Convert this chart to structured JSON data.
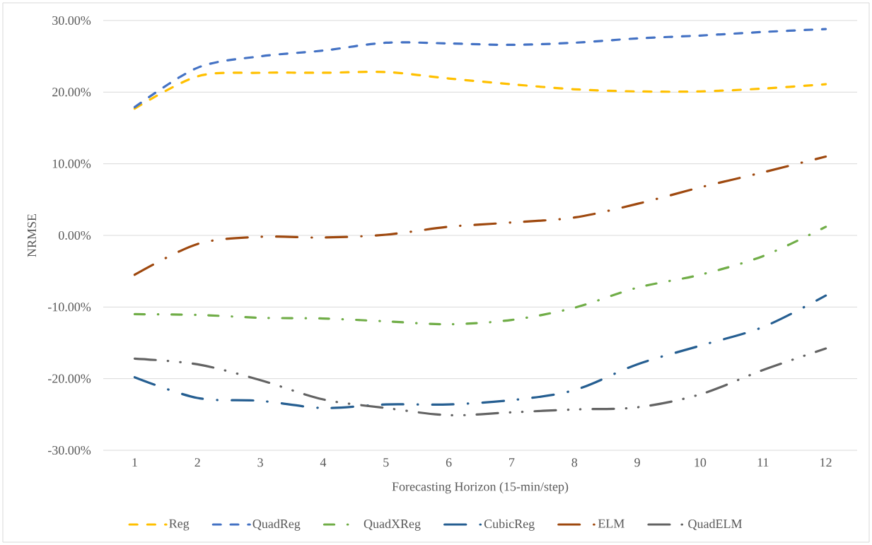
{
  "chart_data": {
    "type": "line",
    "xlabel": "Forecasting Horizon (15-min/step)",
    "ylabel": "NRMSE",
    "categories": [
      "1",
      "2",
      "3",
      "4",
      "5",
      "6",
      "7",
      "8",
      "9",
      "10",
      "11",
      "12"
    ],
    "series": [
      {
        "name": "Reg",
        "color": "#ffc000",
        "line_style": "dashed",
        "values": [
          17.7,
          22.2,
          22.7,
          22.7,
          22.8,
          21.9,
          21.1,
          20.4,
          20.1,
          20.1,
          20.5,
          21.1
        ]
      },
      {
        "name": "QuadReg",
        "color": "#4472c4",
        "line_style": "dashed",
        "values": [
          17.9,
          23.4,
          25.0,
          25.8,
          26.9,
          26.8,
          26.6,
          26.9,
          27.5,
          27.9,
          28.4,
          28.8
        ]
      },
      {
        "name": "QuadXReg",
        "color": "#70ad47",
        "line_style": "dashdot",
        "values": [
          -11.0,
          -11.1,
          -11.5,
          -11.6,
          -12.0,
          -12.4,
          -11.8,
          -10.1,
          -7.3,
          -5.5,
          -2.9,
          1.2
        ]
      },
      {
        "name": "CubicReg",
        "color": "#255e91",
        "line_style": "longdashdot",
        "values": [
          -19.8,
          -22.7,
          -23.1,
          -24.1,
          -23.6,
          -23.6,
          -23.0,
          -21.6,
          -18.0,
          -15.4,
          -12.8,
          -8.4
        ]
      },
      {
        "name": "ELM",
        "color": "#9e480e",
        "line_style": "longdashdot",
        "values": [
          -5.5,
          -1.2,
          -0.2,
          -0.3,
          0.1,
          1.2,
          1.8,
          2.5,
          4.4,
          6.7,
          8.8,
          11.0
        ]
      },
      {
        "name": "QuadELM",
        "color": "#636363",
        "line_style": "longdashdotdot",
        "values": [
          -17.2,
          -18.0,
          -20.2,
          -22.9,
          -24.1,
          -25.1,
          -24.7,
          -24.3,
          -24.0,
          -22.2,
          -18.8,
          -15.8
        ]
      }
    ],
    "ylim": [
      -30,
      30
    ],
    "yticks": [
      {
        "value": -30,
        "label": "-30.00%"
      },
      {
        "value": -20,
        "label": "-20.00%"
      },
      {
        "value": -10,
        "label": "-10.00%"
      },
      {
        "value": 0,
        "label": "0.00%"
      },
      {
        "value": 10,
        "label": "10.00%"
      },
      {
        "value": 20,
        "label": "20.00%"
      },
      {
        "value": 30,
        "label": "30.00%"
      }
    ],
    "grid": "y",
    "legend": "bottom"
  }
}
